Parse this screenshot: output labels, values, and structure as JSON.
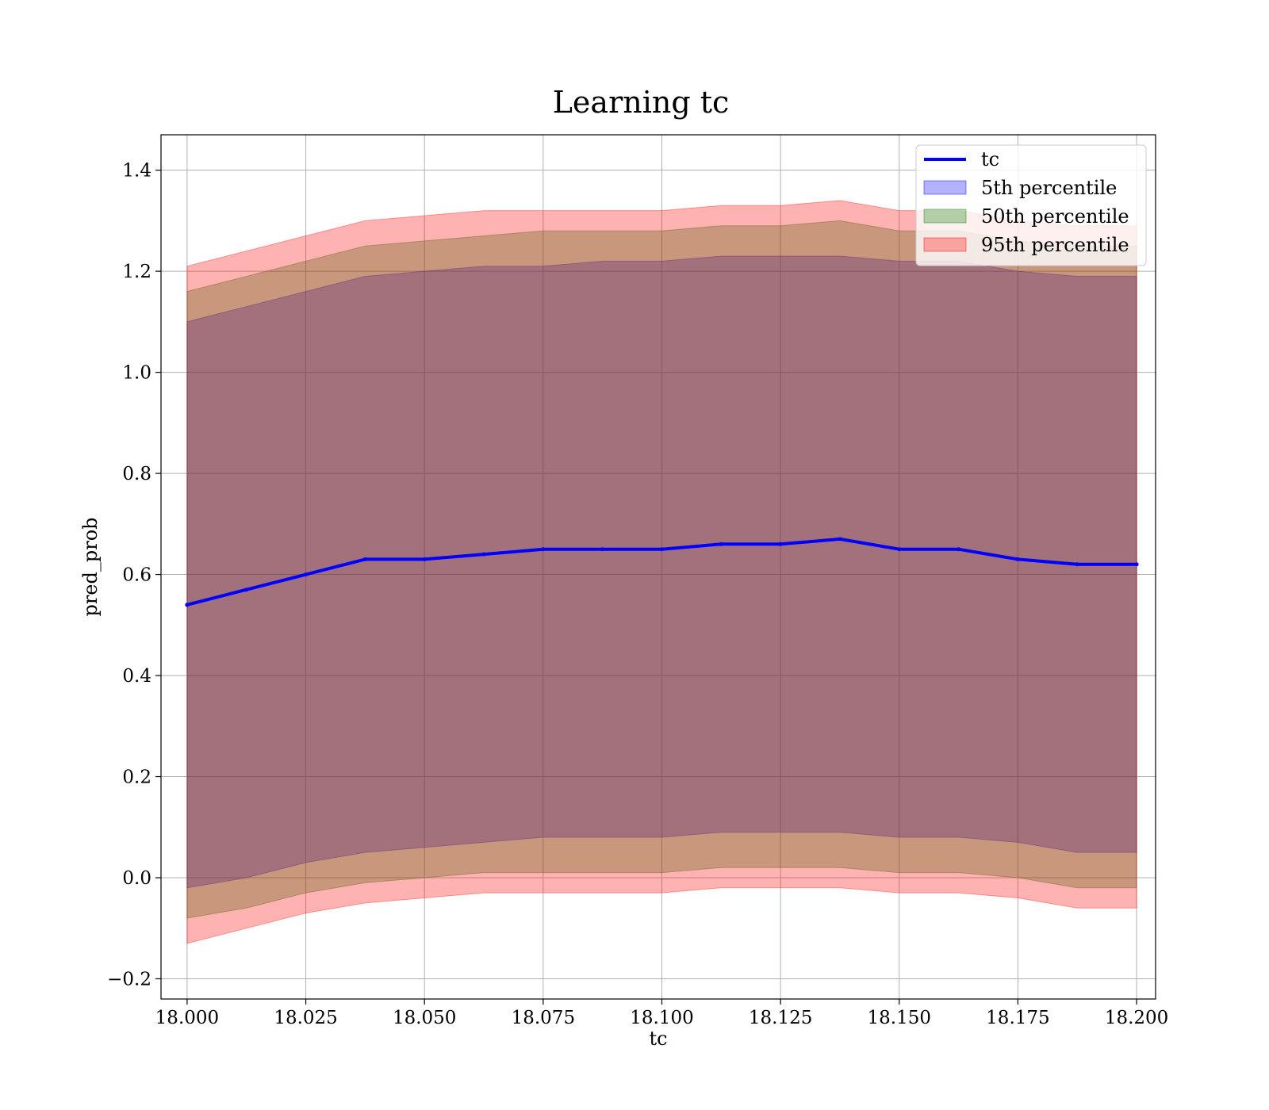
{
  "chart_data": {
    "type": "line",
    "title": "Learning tc",
    "xlabel": "tc",
    "ylabel": "pred_prob",
    "xlim": [
      17.9945,
      18.204
    ],
    "ylim": [
      -0.24,
      1.47
    ],
    "grid": true,
    "legend_position": "top-right",
    "xticks": [
      18.0,
      18.025,
      18.05,
      18.075,
      18.1,
      18.125,
      18.15,
      18.175,
      18.2
    ],
    "xtick_labels": [
      "18.000",
      "18.025",
      "18.050",
      "18.075",
      "18.100",
      "18.125",
      "18.150",
      "18.175",
      "18.200"
    ],
    "yticks": [
      -0.2,
      0.0,
      0.2,
      0.4,
      0.6,
      0.8,
      1.0,
      1.2,
      1.4
    ],
    "ytick_labels": [
      "−0.2",
      "0.0",
      "0.2",
      "0.4",
      "0.6",
      "0.8",
      "1.0",
      "1.2",
      "1.4"
    ],
    "x": [
      18.0,
      18.0125,
      18.025,
      18.0375,
      18.05,
      18.0625,
      18.075,
      18.0875,
      18.1,
      18.1125,
      18.125,
      18.1375,
      18.15,
      18.1625,
      18.175,
      18.1875,
      18.2
    ],
    "series": [
      {
        "name": "tc",
        "kind": "line",
        "color": "#0000ff",
        "values": [
          0.54,
          0.57,
          0.6,
          0.63,
          0.63,
          0.64,
          0.65,
          0.65,
          0.65,
          0.66,
          0.66,
          0.67,
          0.65,
          0.65,
          0.63,
          0.62,
          0.62
        ]
      },
      {
        "name": "5th percentile",
        "kind": "band",
        "color": "#0000ff",
        "opacity": 0.3,
        "lower": [
          -0.02,
          0.0,
          0.03,
          0.05,
          0.06,
          0.07,
          0.08,
          0.08,
          0.08,
          0.09,
          0.09,
          0.09,
          0.08,
          0.08,
          0.07,
          0.05,
          0.05
        ],
        "upper": [
          1.1,
          1.13,
          1.16,
          1.19,
          1.2,
          1.21,
          1.21,
          1.22,
          1.22,
          1.23,
          1.23,
          1.23,
          1.22,
          1.22,
          1.2,
          1.19,
          1.19
        ]
      },
      {
        "name": "50th percentile",
        "kind": "band",
        "color": "#008000",
        "opacity": 0.3,
        "lower": [
          -0.08,
          -0.06,
          -0.03,
          -0.01,
          0.0,
          0.01,
          0.01,
          0.01,
          0.01,
          0.02,
          0.02,
          0.02,
          0.01,
          0.01,
          0.0,
          -0.02,
          -0.02
        ],
        "upper": [
          1.16,
          1.19,
          1.22,
          1.25,
          1.26,
          1.27,
          1.28,
          1.28,
          1.28,
          1.29,
          1.29,
          1.3,
          1.28,
          1.28,
          1.26,
          1.25,
          1.25
        ]
      },
      {
        "name": "95th percentile",
        "kind": "band",
        "color": "#ff0000",
        "opacity": 0.3,
        "lower": [
          -0.13,
          -0.1,
          -0.07,
          -0.05,
          -0.04,
          -0.03,
          -0.03,
          -0.03,
          -0.03,
          -0.02,
          -0.02,
          -0.02,
          -0.03,
          -0.03,
          -0.04,
          -0.06,
          -0.06
        ],
        "upper": [
          1.21,
          1.24,
          1.27,
          1.3,
          1.31,
          1.32,
          1.32,
          1.32,
          1.32,
          1.33,
          1.33,
          1.34,
          1.32,
          1.32,
          1.3,
          1.29,
          1.29
        ]
      }
    ]
  }
}
